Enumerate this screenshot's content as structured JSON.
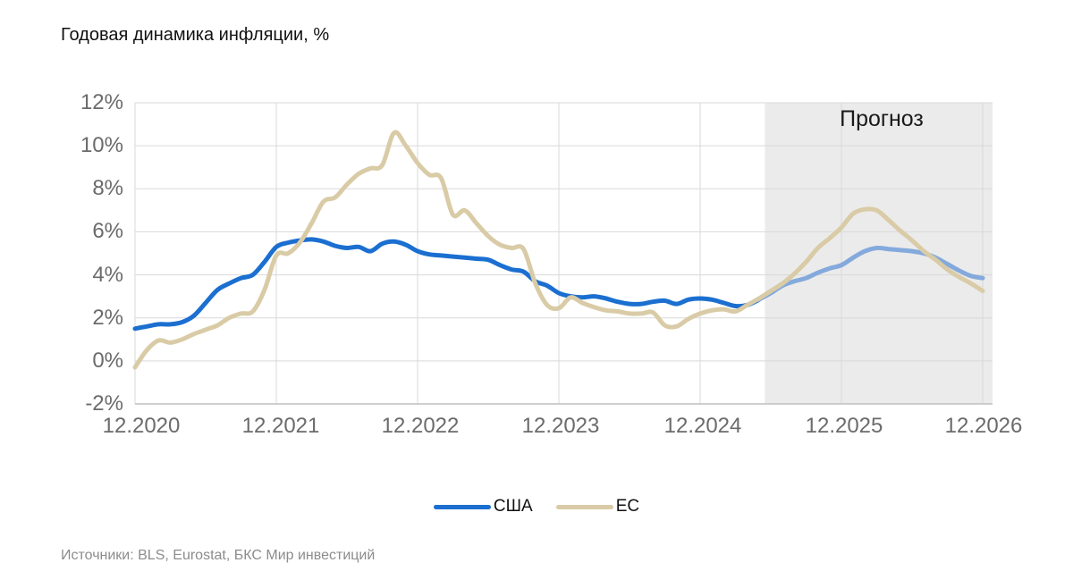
{
  "title": "Годовая динамика инфляции, %",
  "source": "Источники: BLS, Eurostat, БКС Мир инвестиций",
  "chart_data": {
    "type": "line",
    "title": "Годовая динамика инфляции, %",
    "x_unit": "month",
    "x_tick_labels": [
      "12.2020",
      "12.2021",
      "12.2022",
      "12.2023",
      "12.2024",
      "12.2025",
      "12.2026"
    ],
    "y_tick_labels": [
      "12%",
      "10%",
      "8%",
      "6%",
      "4%",
      "2%",
      "0%",
      "-2%"
    ],
    "ylim": [
      -2,
      12
    ],
    "months_per_tick": 12,
    "grid": true,
    "legend_position": "bottom",
    "forecast_region_label": "Прогноз",
    "forecast_start_month_index": 53.5,
    "forecast_bg": "#ebebeb",
    "series": [
      {
        "name": "США",
        "color": "#1b6fd0",
        "forecast_color": "#84a9dc",
        "values": [
          1.5,
          1.6,
          1.7,
          1.7,
          1.8,
          2.1,
          2.7,
          3.3,
          3.6,
          3.85,
          4.0,
          4.6,
          5.3,
          5.5,
          5.6,
          5.65,
          5.55,
          5.35,
          5.25,
          5.3,
          5.1,
          5.45,
          5.55,
          5.4,
          5.1,
          4.95,
          4.9,
          4.85,
          4.8,
          4.75,
          4.7,
          4.45,
          4.25,
          4.15,
          3.7,
          3.5,
          3.15,
          3.0,
          2.95,
          3.0,
          2.9,
          2.75,
          2.65,
          2.65,
          2.75,
          2.8,
          2.65,
          2.85,
          2.9,
          2.85,
          2.7,
          2.55,
          2.6,
          2.85,
          3.15,
          3.5,
          3.7,
          3.85,
          4.1,
          4.3,
          4.45,
          4.8,
          5.1,
          5.25,
          5.2,
          5.15,
          5.1,
          5.0,
          4.8,
          4.5,
          4.2,
          3.95,
          3.85
        ]
      },
      {
        "name": "ЕС",
        "color": "#d9cba6",
        "forecast_color": "#d9cba6",
        "values": [
          -0.3,
          0.5,
          0.95,
          0.85,
          1.0,
          1.25,
          1.45,
          1.65,
          2.0,
          2.2,
          2.3,
          3.3,
          4.9,
          5.0,
          5.5,
          6.4,
          7.4,
          7.6,
          8.2,
          8.7,
          8.95,
          9.1,
          10.6,
          10.0,
          9.2,
          8.65,
          8.5,
          6.8,
          7.0,
          6.4,
          5.8,
          5.4,
          5.25,
          5.2,
          3.6,
          2.6,
          2.45,
          2.95,
          2.7,
          2.5,
          2.35,
          2.3,
          2.2,
          2.2,
          2.25,
          1.65,
          1.6,
          1.95,
          2.2,
          2.35,
          2.4,
          2.3,
          2.6,
          2.9,
          3.25,
          3.6,
          4.05,
          4.6,
          5.25,
          5.7,
          6.2,
          6.85,
          7.05,
          7.0,
          6.55,
          6.05,
          5.6,
          5.1,
          4.7,
          4.25,
          3.9,
          3.6,
          3.25
        ]
      }
    ]
  }
}
